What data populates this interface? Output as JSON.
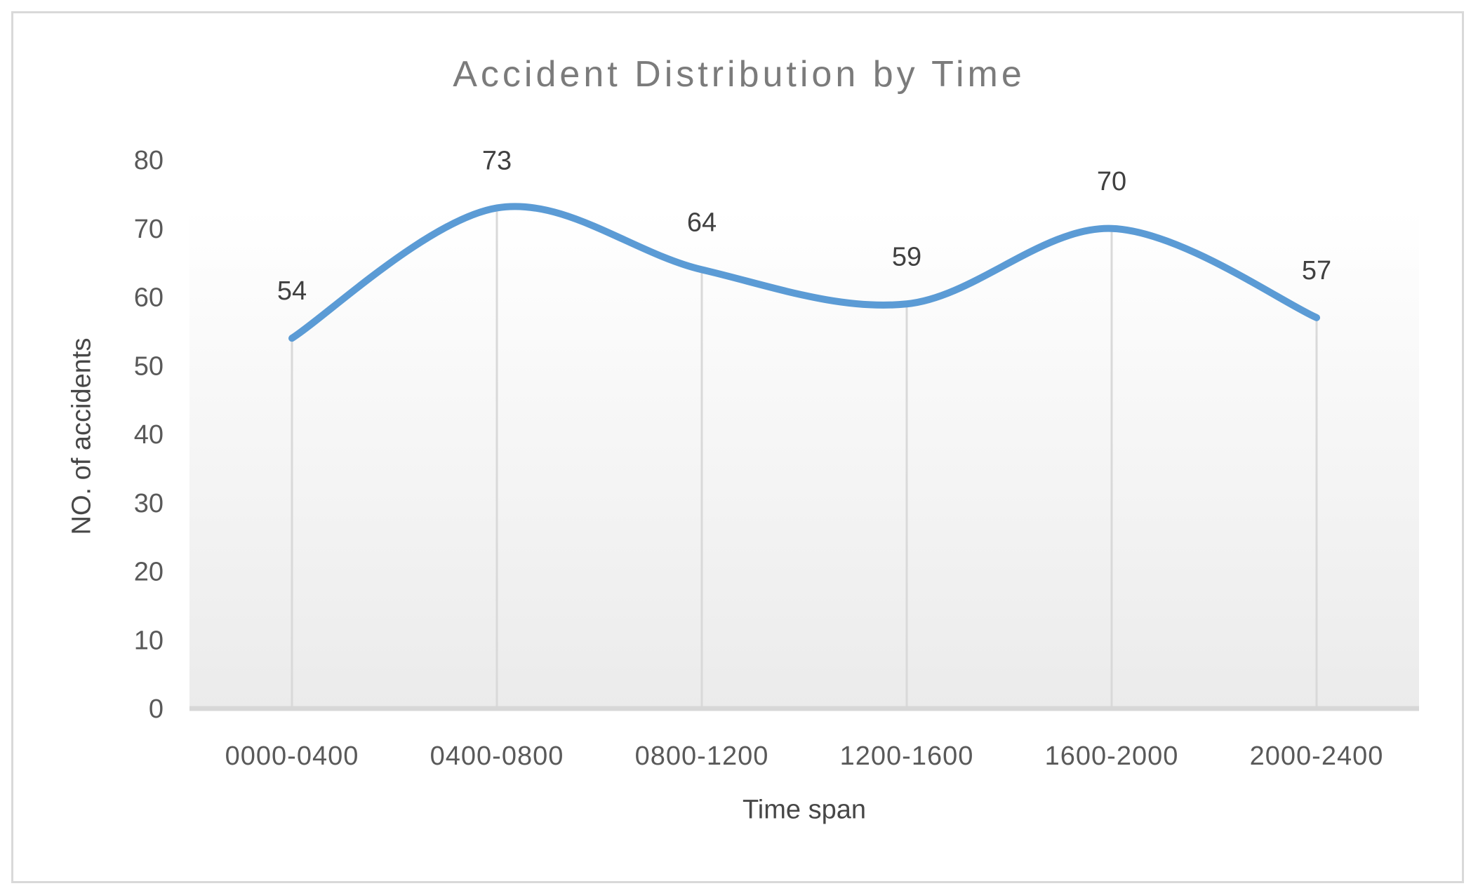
{
  "chart": {
    "title": "Accident Distribution by Time",
    "x_axis_title": "Time span",
    "y_axis_title": "NO. of accidents"
  },
  "chart_data": {
    "type": "line",
    "title": "Accident Distribution by Time",
    "xlabel": "Time span",
    "ylabel": "NO. of accidents",
    "categories": [
      "0000-0400",
      "0400-0800",
      "0800-1200",
      "1200-1600",
      "1600-2000",
      "2000-2400"
    ],
    "series": [
      {
        "name": "NO. of accidents",
        "values": [
          54,
          73,
          64,
          59,
          70,
          57
        ]
      }
    ],
    "data_labels": [
      "54",
      "73",
      "64",
      "59",
      "70",
      "57"
    ],
    "y_ticks": [
      0,
      10,
      20,
      30,
      40,
      50,
      60,
      70,
      80
    ],
    "ylim": [
      0,
      80
    ],
    "grid": "vertical-droplines-only",
    "legend_position": "none",
    "smooth_line": true
  },
  "colors": {
    "line": "#5B9BD5",
    "title_text": "#7b7b7b",
    "axis_title_text": "#474747",
    "tick_label_text": "#595959",
    "data_label_text": "#404040",
    "dropline": "#d9d9d9",
    "axis_line": "#d7d7d7",
    "frame_border": "#d9d9d9",
    "plot_bg_top": "#ffffff",
    "plot_bg_bottom": "#ebebeb"
  }
}
